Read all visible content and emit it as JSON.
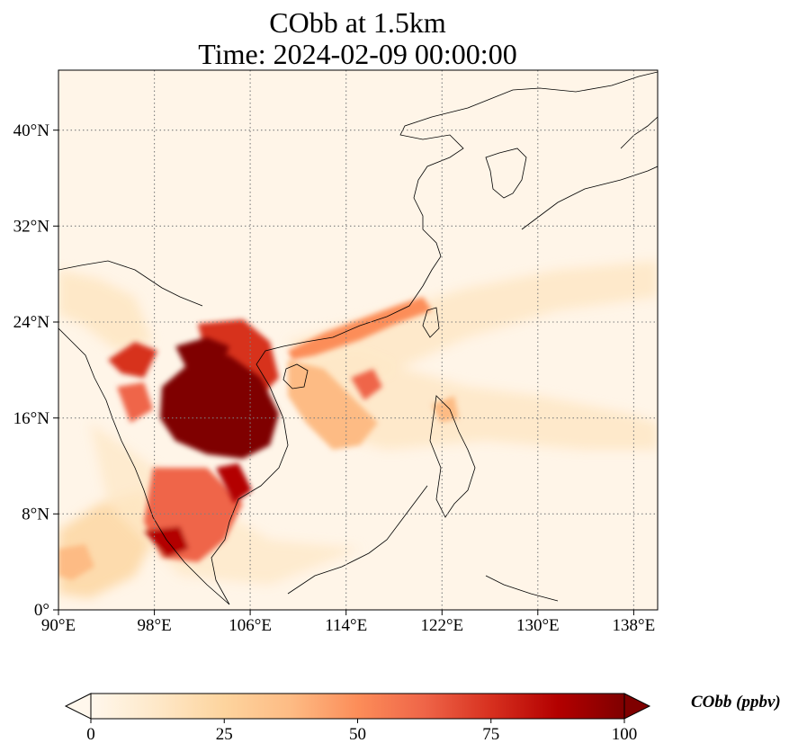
{
  "title": {
    "line1": "CObb at 1.5km",
    "line2": "Time: 2024-02-09 00:00:00"
  },
  "map": {
    "extent": {
      "lon": [
        90,
        140
      ],
      "lat": [
        0,
        45
      ]
    },
    "x_ticks": [
      "90°E",
      "98°E",
      "106°E",
      "114°E",
      "122°E",
      "130°E",
      "138°E"
    ],
    "y_ticks": [
      "0°",
      "8°N",
      "16°N",
      "24°N",
      "32°N",
      "40°N"
    ],
    "gridlines": "dotted"
  },
  "colorbar": {
    "label": "CObb (ppbv)",
    "ticks": [
      "0",
      "25",
      "50",
      "75",
      "100"
    ],
    "colormap": "OrRd",
    "range": [
      0,
      100
    ],
    "extend": "both"
  },
  "colors": {
    "low": "#fff7ec",
    "mid": "#fc8d59",
    "high": "#7f0000"
  }
}
